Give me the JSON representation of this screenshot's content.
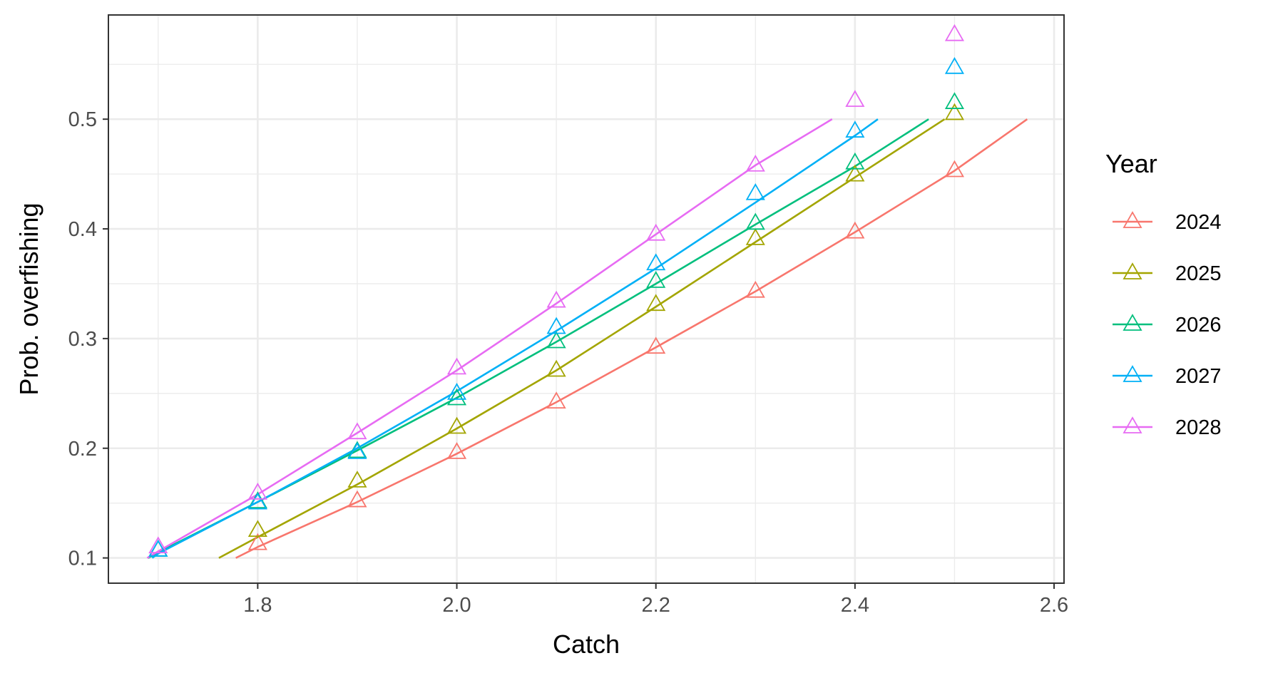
{
  "chart_data": {
    "type": "line",
    "title": "",
    "xlabel": "Catch",
    "ylabel": "Prob. overfishing",
    "xlim": [
      1.65,
      2.61
    ],
    "ylim": [
      0.077,
      0.595
    ],
    "x_ticks": [
      1.8,
      2.0,
      2.2,
      2.4,
      2.6
    ],
    "x_tick_labels": [
      "1.8",
      "2.0",
      "2.2",
      "2.4",
      "2.6"
    ],
    "x_minor": [
      1.7,
      1.9,
      2.1,
      2.3,
      2.5
    ],
    "y_ticks": [
      0.1,
      0.2,
      0.3,
      0.4,
      0.5
    ],
    "y_tick_labels": [
      "0.1",
      "0.2",
      "0.3",
      "0.4",
      "0.5"
    ],
    "y_minor": [
      0.15,
      0.25,
      0.35,
      0.45,
      0.55
    ],
    "grid": true,
    "theme": "bw",
    "marker": "open-triangle",
    "legend": {
      "title": "Year",
      "position": "right"
    },
    "series": [
      {
        "name": "2024",
        "color": "#F8766D",
        "points": [
          [
            1.8,
            0.113
          ],
          [
            1.9,
            0.152
          ],
          [
            2.0,
            0.196
          ],
          [
            2.1,
            0.242
          ],
          [
            2.2,
            0.292
          ],
          [
            2.3,
            0.343
          ],
          [
            2.4,
            0.397
          ],
          [
            2.5,
            0.453
          ]
        ],
        "line": [
          [
            1.778,
            0.1
          ],
          [
            1.8,
            0.11
          ],
          [
            1.9,
            0.151
          ],
          [
            2.0,
            0.195
          ],
          [
            2.1,
            0.242
          ],
          [
            2.2,
            0.292
          ],
          [
            2.3,
            0.343
          ],
          [
            2.4,
            0.397
          ],
          [
            2.5,
            0.453
          ],
          [
            2.573,
            0.5
          ]
        ]
      },
      {
        "name": "2025",
        "color": "#A3A500",
        "points": [
          [
            1.8,
            0.125
          ],
          [
            1.9,
            0.17
          ],
          [
            2.0,
            0.219
          ],
          [
            2.1,
            0.271
          ],
          [
            2.2,
            0.331
          ],
          [
            2.3,
            0.391
          ],
          [
            2.4,
            0.449
          ],
          [
            2.5,
            0.505
          ]
        ],
        "line": [
          [
            1.761,
            0.1
          ],
          [
            1.8,
            0.119
          ],
          [
            1.9,
            0.167
          ],
          [
            2.0,
            0.218
          ],
          [
            2.1,
            0.271
          ],
          [
            2.2,
            0.329
          ],
          [
            2.3,
            0.388
          ],
          [
            2.4,
            0.447
          ],
          [
            2.49,
            0.5
          ]
        ]
      },
      {
        "name": "2026",
        "color": "#00BF7D",
        "points": [
          [
            1.7,
            0.107
          ],
          [
            1.8,
            0.151
          ],
          [
            1.9,
            0.197
          ],
          [
            2.0,
            0.245
          ],
          [
            2.1,
            0.297
          ],
          [
            2.2,
            0.352
          ],
          [
            2.3,
            0.405
          ],
          [
            2.4,
            0.46
          ],
          [
            2.5,
            0.515
          ]
        ],
        "line": [
          [
            1.69,
            0.1
          ],
          [
            1.7,
            0.105
          ],
          [
            1.8,
            0.151
          ],
          [
            1.9,
            0.198
          ],
          [
            2.0,
            0.246
          ],
          [
            2.1,
            0.297
          ],
          [
            2.2,
            0.35
          ],
          [
            2.3,
            0.404
          ],
          [
            2.4,
            0.457
          ],
          [
            2.474,
            0.5
          ]
        ]
      },
      {
        "name": "2027",
        "color": "#00B0F6",
        "points": [
          [
            1.7,
            0.107
          ],
          [
            1.8,
            0.15
          ],
          [
            1.9,
            0.196
          ],
          [
            2.0,
            0.25
          ],
          [
            2.1,
            0.31
          ],
          [
            2.2,
            0.368
          ],
          [
            2.3,
            0.432
          ],
          [
            2.4,
            0.489
          ],
          [
            2.5,
            0.547
          ]
        ],
        "line": [
          [
            1.694,
            0.1
          ],
          [
            1.7,
            0.104
          ],
          [
            1.8,
            0.151
          ],
          [
            1.9,
            0.2
          ],
          [
            2.0,
            0.252
          ],
          [
            2.1,
            0.307
          ],
          [
            2.2,
            0.364
          ],
          [
            2.3,
            0.424
          ],
          [
            2.4,
            0.485
          ],
          [
            2.423,
            0.5
          ]
        ]
      },
      {
        "name": "2028",
        "color": "#E76BF3",
        "points": [
          [
            1.7,
            0.11
          ],
          [
            1.8,
            0.159
          ],
          [
            1.9,
            0.214
          ],
          [
            2.0,
            0.273
          ],
          [
            2.1,
            0.334
          ],
          [
            2.2,
            0.395
          ],
          [
            2.3,
            0.458
          ],
          [
            2.4,
            0.517
          ],
          [
            2.5,
            0.577
          ]
        ],
        "line": [
          [
            1.689,
            0.1
          ],
          [
            1.7,
            0.106
          ],
          [
            1.8,
            0.158
          ],
          [
            1.9,
            0.214
          ],
          [
            2.0,
            0.271
          ],
          [
            2.1,
            0.332
          ],
          [
            2.2,
            0.395
          ],
          [
            2.3,
            0.458
          ],
          [
            2.377,
            0.5
          ]
        ]
      }
    ]
  }
}
